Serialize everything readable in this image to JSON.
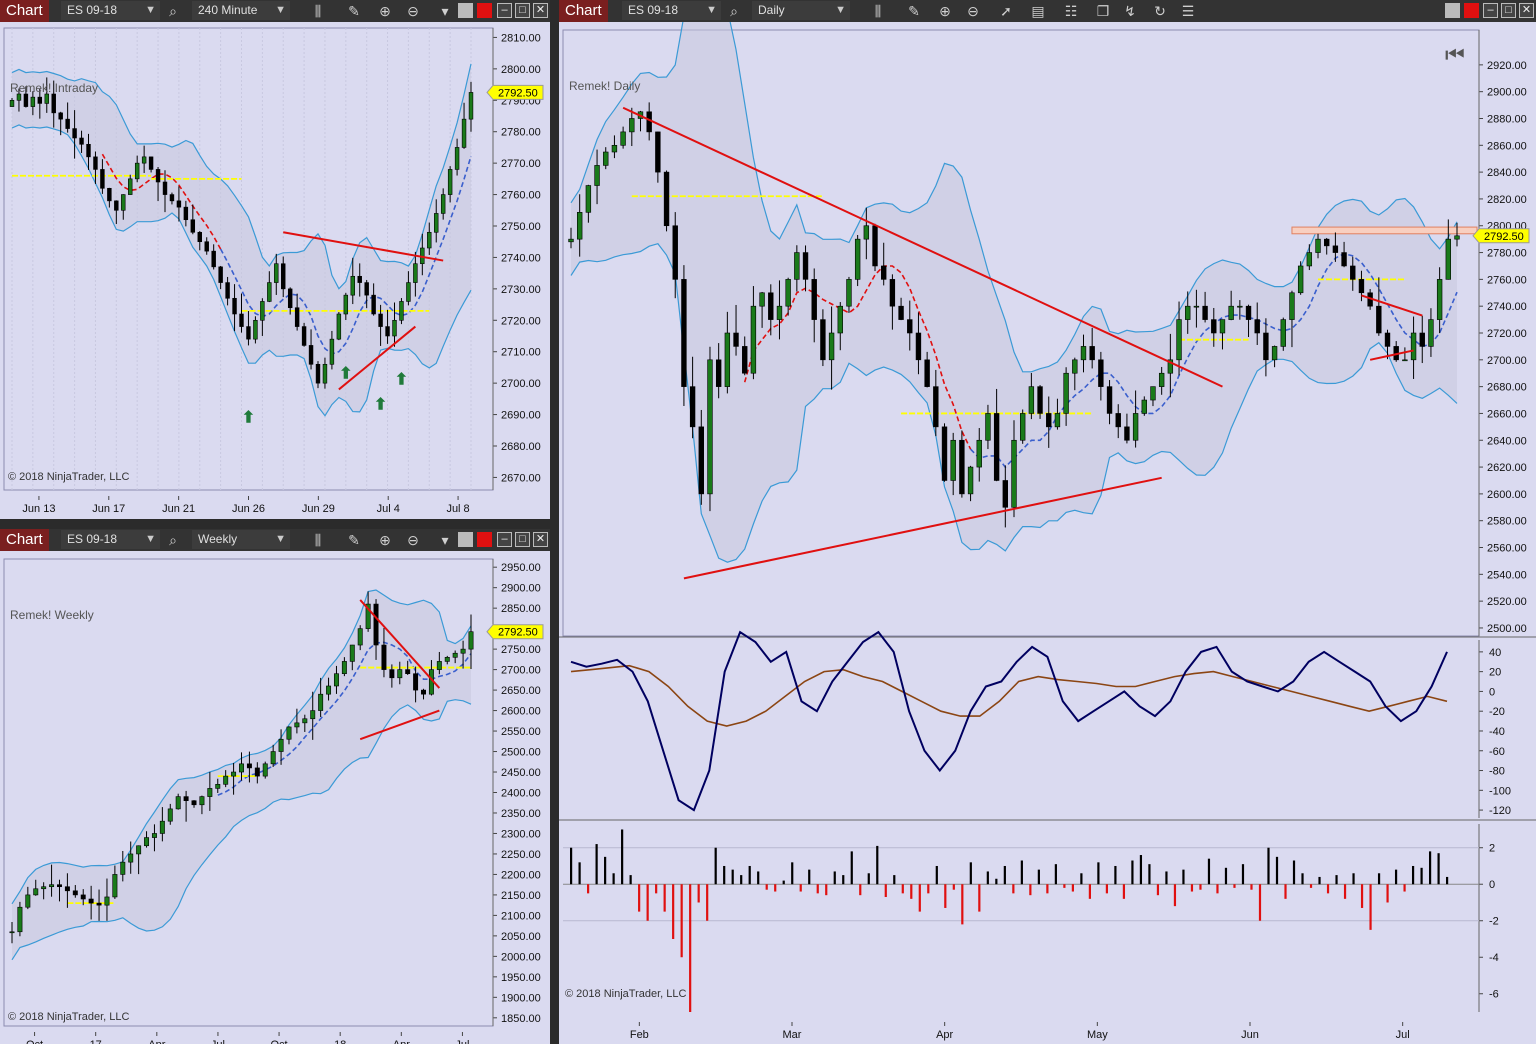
{
  "windows": {
    "intraday": {
      "chart_label": "Chart",
      "instrument": "ES 09-18",
      "interval": "240 Minute"
    },
    "weekly": {
      "chart_label": "Chart",
      "instrument": "ES 09-18",
      "interval": "Weekly"
    },
    "daily": {
      "chart_label": "Chart",
      "instrument": "ES 09-18",
      "interval": "Daily"
    }
  },
  "copyright": "© 2018 NinjaTrader, LLC",
  "colors": {
    "background": "#dadaf0",
    "bollinger": "#3b9ad6",
    "trendline": "#e01010",
    "ma_slow": "#3a5fcd",
    "ma_fast": "#e01010",
    "pivot": "#ffff00",
    "oscillator": "#000060",
    "signal": "#8b4513",
    "last_price_tag": "#ffff00"
  },
  "chart_data": [
    {
      "id": "intraday",
      "type": "candlestick",
      "title": "Remek! Intraday",
      "y_ticks": [
        "2810.00",
        "2800.00",
        "2790.00",
        "2780.00",
        "2770.00",
        "2760.00",
        "2750.00",
        "2740.00",
        "2730.00",
        "2720.00",
        "2710.00",
        "2700.00",
        "2690.00",
        "2680.00",
        "2670.00"
      ],
      "y_range": [
        2666,
        2813
      ],
      "x_ticks": [
        "Jun 13",
        "Jun 17",
        "Jun 21",
        "Jun 26",
        "Jun 29",
        "Jul 4",
        "Jul 8"
      ],
      "last_price": "2792.50",
      "closes": [
        2790,
        2792,
        2788,
        2791,
        2789,
        2792,
        2786,
        2784,
        2781,
        2778,
        2776,
        2772,
        2768,
        2762,
        2758,
        2755,
        2760,
        2765,
        2770,
        2772,
        2768,
        2764,
        2760,
        2758,
        2756,
        2752,
        2748,
        2745,
        2742,
        2737,
        2732,
        2727,
        2722,
        2718,
        2714,
        2720,
        2726,
        2732,
        2738,
        2730,
        2724,
        2718,
        2712,
        2706,
        2700,
        2706,
        2714,
        2722,
        2728,
        2734,
        2732,
        2728,
        2722,
        2718,
        2715,
        2720,
        2726,
        2732,
        2738,
        2743,
        2748,
        2754,
        2760,
        2768,
        2775,
        2784,
        2792.5
      ],
      "pivot_levels": [
        {
          "from": 0,
          "to": 20,
          "value": 2766
        },
        {
          "from": 20,
          "to": 33,
          "value": 2765
        },
        {
          "from": 33,
          "to": 60,
          "value": 2723
        }
      ],
      "trendlines": [
        {
          "from": [
            39,
            2748
          ],
          "to": [
            62,
            2739
          ]
        },
        {
          "from": [
            47,
            2698
          ],
          "to": [
            58,
            2718
          ]
        }
      ],
      "signal_arrows": [
        34,
        48,
        53,
        56
      ]
    },
    {
      "id": "weekly",
      "type": "candlestick",
      "title": "Remek! Weekly",
      "y_ticks": [
        "2950.00",
        "2900.00",
        "2850.00",
        "2800.00",
        "2750.00",
        "2700.00",
        "2650.00",
        "2600.00",
        "2550.00",
        "2500.00",
        "2450.00",
        "2400.00",
        "2350.00",
        "2300.00",
        "2250.00",
        "2200.00",
        "2150.00",
        "2100.00",
        "2050.00",
        "2000.00",
        "1950.00",
        "1900.00",
        "1850.00"
      ],
      "y_range": [
        1830,
        2970
      ],
      "x_ticks": [
        "Oct",
        "17",
        "Apr",
        "Jul",
        "Oct",
        "18",
        "Apr",
        "Jul"
      ],
      "last_price": "2792.50",
      "closes": [
        2060,
        2120,
        2150,
        2165,
        2170,
        2175,
        2170,
        2160,
        2150,
        2140,
        2130,
        2125,
        2145,
        2200,
        2230,
        2250,
        2270,
        2290,
        2300,
        2330,
        2360,
        2390,
        2380,
        2370,
        2390,
        2410,
        2420,
        2440,
        2450,
        2470,
        2460,
        2440,
        2470,
        2500,
        2530,
        2560,
        2570,
        2580,
        2600,
        2640,
        2660,
        2690,
        2720,
        2760,
        2800,
        2860,
        2760,
        2700,
        2680,
        2700,
        2690,
        2650,
        2640,
        2700,
        2720,
        2730,
        2740,
        2750,
        2792.5
      ],
      "pivot_levels": [
        {
          "from": 7,
          "to": 13,
          "value": 2130
        },
        {
          "from": 26,
          "to": 31,
          "value": 2440
        },
        {
          "from": 44,
          "to": 58,
          "value": 2705
        }
      ],
      "trendlines": [
        {
          "from": [
            44,
            2870
          ],
          "to": [
            54,
            2655
          ]
        },
        {
          "from": [
            44,
            2530
          ],
          "to": [
            54,
            2600
          ]
        }
      ]
    },
    {
      "id": "daily",
      "type": "candlestick",
      "title": "Remek! Daily",
      "y_ticks": [
        "2920.00",
        "2900.00",
        "2880.00",
        "2860.00",
        "2840.00",
        "2820.00",
        "2800.00",
        "2780.00",
        "2760.00",
        "2740.00",
        "2720.00",
        "2700.00",
        "2680.00",
        "2660.00",
        "2640.00",
        "2620.00",
        "2600.00",
        "2580.00",
        "2560.00",
        "2540.00",
        "2520.00",
        "2500.00"
      ],
      "y_range": [
        2494,
        2946
      ],
      "x_ticks": [
        "Feb",
        "Mar",
        "Apr",
        "May",
        "Jun",
        "Jul"
      ],
      "last_price": "2792.50",
      "closes": [
        2790,
        2810,
        2830,
        2845,
        2855,
        2860,
        2870,
        2880,
        2885,
        2870,
        2840,
        2800,
        2760,
        2680,
        2650,
        2600,
        2700,
        2680,
        2720,
        2710,
        2690,
        2740,
        2750,
        2730,
        2740,
        2760,
        2780,
        2760,
        2730,
        2700,
        2720,
        2740,
        2760,
        2790,
        2800,
        2770,
        2760,
        2740,
        2730,
        2720,
        2700,
        2680,
        2650,
        2610,
        2640,
        2600,
        2620,
        2640,
        2660,
        2610,
        2590,
        2640,
        2660,
        2680,
        2660,
        2650,
        2660,
        2690,
        2700,
        2710,
        2700,
        2680,
        2660,
        2650,
        2640,
        2660,
        2670,
        2680,
        2690,
        2700,
        2730,
        2740,
        2740,
        2730,
        2720,
        2730,
        2740,
        2740,
        2730,
        2720,
        2700,
        2710,
        2730,
        2750,
        2770,
        2780,
        2790,
        2785,
        2780,
        2770,
        2760,
        2750,
        2740,
        2720,
        2710,
        2700,
        2700,
        2720,
        2710,
        2730,
        2760,
        2790,
        2792.5
      ],
      "pivot_levels": [
        {
          "from": 7,
          "to": 29,
          "value": 2822
        },
        {
          "from": 38,
          "to": 60,
          "value": 2660
        },
        {
          "from": 70,
          "to": 78,
          "value": 2715
        },
        {
          "from": 86,
          "to": 96,
          "value": 2760
        }
      ],
      "trendlines": [
        {
          "from": [
            6,
            2888
          ],
          "to": [
            75,
            2680
          ]
        },
        {
          "from": [
            13,
            2537
          ],
          "to": [
            68,
            2612
          ]
        },
        {
          "from": [
            91,
            2748
          ],
          "to": [
            98,
            2733
          ]
        },
        {
          "from": [
            92,
            2700
          ],
          "to": [
            97,
            2707
          ]
        }
      ],
      "resistance_zone": [
        2794,
        2799
      ],
      "oscillator": {
        "y_ticks": [
          "40",
          "20",
          "0",
          "-20",
          "-40",
          "-60",
          "-80",
          "-100",
          "-120"
        ],
        "y_range": [
          -128,
          52
        ],
        "fast": [
          30,
          25,
          28,
          32,
          20,
          -10,
          -60,
          -110,
          -120,
          -80,
          20,
          60,
          50,
          30,
          40,
          -10,
          -20,
          10,
          30,
          50,
          60,
          40,
          -20,
          -60,
          -80,
          -60,
          -20,
          5,
          10,
          30,
          45,
          35,
          -10,
          -30,
          -20,
          -10,
          0,
          -15,
          -25,
          -10,
          20,
          40,
          45,
          20,
          10,
          5,
          0,
          10,
          30,
          40,
          30,
          20,
          10,
          -15,
          -30,
          -20,
          5,
          40
        ],
        "slow": [
          20,
          22,
          24,
          26,
          20,
          5,
          -15,
          -30,
          -35,
          -30,
          -20,
          -5,
          10,
          20,
          22,
          15,
          10,
          0,
          -10,
          -20,
          -25,
          -25,
          -10,
          10,
          15,
          12,
          10,
          8,
          5,
          5,
          10,
          15,
          18,
          20,
          15,
          10,
          5,
          0,
          -5,
          -10,
          -15,
          -20,
          -15,
          -10,
          -5,
          -10
        ]
      },
      "volume_histogram": {
        "y_ticks": [
          "2",
          "0",
          "-2",
          "-4",
          "-6"
        ],
        "y_range": [
          -7,
          3.3
        ],
        "values": [
          2,
          1.2,
          -0.5,
          2.2,
          1.5,
          0.6,
          3,
          0.5,
          -1.5,
          -2,
          -0.5,
          -1.5,
          -3,
          -4,
          -7,
          -1,
          -2,
          2,
          1,
          0.8,
          0.5,
          1,
          0.7,
          -0.3,
          -0.4,
          0.2,
          1.2,
          -0.4,
          0.8,
          -0.5,
          -0.6,
          0.7,
          0.5,
          1.8,
          -0.6,
          0.6,
          2.1,
          -0.7,
          0.5,
          -0.5,
          -0.8,
          -1.5,
          -0.5,
          1,
          -1.3,
          -0.3,
          -2.2,
          1.2,
          -1.5,
          0.7,
          0.3,
          1,
          -0.5,
          1.3,
          -0.6,
          0.8,
          -0.5,
          1.1,
          -0.2,
          -0.4,
          0.6,
          -0.8,
          1.2,
          -0.5,
          1,
          -0.8,
          1.3,
          1.6,
          1.1,
          -0.6,
          0.7,
          -1.2,
          0.8,
          -0.4,
          -0.3,
          1.4,
          -0.5,
          0.9,
          -0.2,
          1.1,
          -0.3,
          -2,
          2,
          1.5,
          -0.8,
          1.3,
          0.6,
          -0.2,
          0.4,
          -0.5,
          0.5,
          -0.8,
          0.6,
          -1.3,
          -2.5,
          0.6,
          -1,
          0.8,
          -0.4,
          1,
          0.9,
          1.8,
          1.7,
          0.4
        ]
      }
    }
  ]
}
